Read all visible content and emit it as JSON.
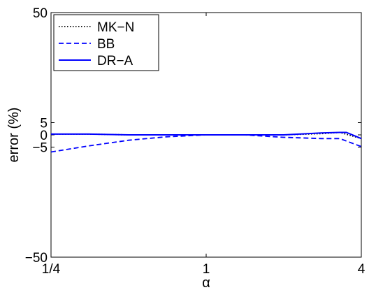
{
  "chart_data": {
    "type": "line",
    "xlabel": "α",
    "ylabel": "error (%)",
    "xscale": "log2",
    "xlim": [
      0.25,
      4
    ],
    "ylim": [
      -50,
      50
    ],
    "grid": false,
    "legend_position": "top-left",
    "xticks": [
      {
        "value": 0.25,
        "label": "1/4"
      },
      {
        "value": 1,
        "label": "1"
      },
      {
        "value": 4,
        "label": "4"
      }
    ],
    "yticks": [
      {
        "value": 50,
        "label": "50"
      },
      {
        "value": 5,
        "label": "5"
      },
      {
        "value": 0,
        "label": "0"
      },
      {
        "value": -5,
        "label": "−5"
      },
      {
        "value": -50,
        "label": "−50"
      }
    ],
    "series": [
      {
        "name": "MK−N",
        "style": "dotted",
        "color": "#000000",
        "x": [
          0.25,
          0.35,
          0.5,
          0.7,
          1.0,
          1.4,
          2.0,
          2.8,
          3.3,
          4.0
        ],
        "y": [
          0.3,
          0.3,
          0.0,
          0.0,
          0.0,
          0.0,
          0.0,
          0.5,
          1.0,
          -1.5
        ]
      },
      {
        "name": "BB",
        "style": "dashed",
        "color": "#0000ff",
        "x": [
          0.25,
          0.35,
          0.5,
          0.7,
          1.0,
          1.4,
          2.0,
          2.8,
          3.3,
          4.0
        ],
        "y": [
          -7.0,
          -4.5,
          -2.2,
          -0.8,
          0.0,
          0.0,
          -1.0,
          -1.5,
          -1.5,
          -4.8
        ]
      },
      {
        "name": "DR−A",
        "style": "solid",
        "color": "#0000ff",
        "x": [
          0.25,
          0.35,
          0.5,
          0.7,
          1.0,
          1.4,
          2.0,
          2.8,
          3.3,
          3.5,
          4.0
        ],
        "y": [
          0.3,
          0.3,
          0.0,
          0.0,
          0.0,
          0.0,
          0.0,
          0.8,
          1.0,
          1.0,
          -1.5
        ]
      }
    ]
  }
}
